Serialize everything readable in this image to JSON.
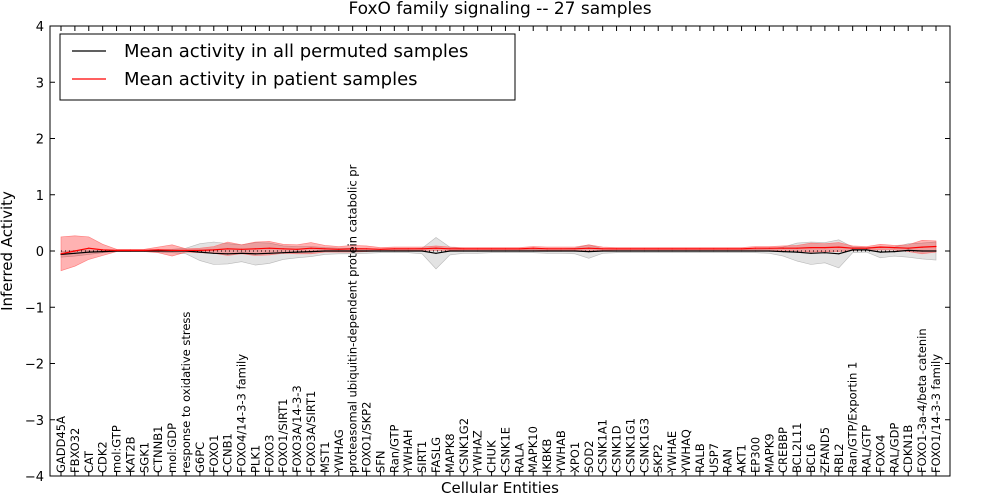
{
  "chart_data": {
    "type": "line",
    "title": "FoxO family signaling -- 27 samples",
    "xlabel": "Cellular Entities",
    "ylabel": "Inferred Activity",
    "ylim": [
      -4,
      4
    ],
    "yticks": [
      "−4",
      "−3",
      "−2",
      "−1",
      "0",
      "1",
      "2",
      "3",
      "4"
    ],
    "legend": {
      "position": "top-left",
      "entries": [
        {
          "label": "Mean activity in all permuted samples",
          "color": "#000000"
        },
        {
          "label": "Mean activity in patient samples",
          "color": "#ff0000"
        }
      ]
    },
    "categories": [
      "GADD45A",
      "FBXO32",
      "CAT",
      "CDK2",
      "mol:GTP",
      "KAT2B",
      "SGK1",
      "CTNNB1",
      "mol:GDP",
      "response to oxidative stress",
      "G6PC",
      "FOXO1",
      "CCNB1",
      "FOXO4/14-3-3 family",
      "PLK1",
      "FOXO3",
      "FOXO1/SIRT1",
      "FOXO3A/14-3-3",
      "FOXO3A/SIRT1",
      "MST1",
      "YWHAG",
      "proteasomal ubiquitin-dependent protein catabolic pr",
      "FOXO1/SKP2",
      "SFN",
      "Ran/GTP",
      "YWHAH",
      "SIRT1",
      "FASLG",
      "MAPK8",
      "CSNK1G2",
      "YWHAZ",
      "CHUK",
      "CSNK1E",
      "RALA",
      "MAPK10",
      "IKBKB",
      "YWHAB",
      "XPO1",
      "SOD2",
      "CSNK1A1",
      "CSNK1D",
      "CSNK1G1",
      "CSNK1G3",
      "SKP2",
      "YWHAE",
      "YWHAQ",
      "RALB",
      "USP7",
      "RAN",
      "AKT1",
      "EP300",
      "MAPK9",
      "CREBBP",
      "BCL2L11",
      "BCL6",
      "ZFAND5",
      "RBL2",
      "Ran/GTP/Exportin 1",
      "RAL/GTP",
      "FOXO4",
      "RAL/GDP",
      "CDKN1B",
      "FOXO1-3a-4/beta catenin",
      "FOXO1/14-3-3 family"
    ],
    "series": [
      {
        "name": "Mean activity in all permuted samples",
        "color": "#000000",
        "values": [
          -0.06,
          -0.04,
          -0.02,
          -0.01,
          0,
          0,
          0,
          0,
          0,
          0,
          -0.02,
          -0.04,
          -0.05,
          -0.04,
          -0.05,
          -0.04,
          -0.03,
          -0.02,
          -0.01,
          0,
          0,
          0,
          0,
          0,
          0,
          0,
          0,
          -0.04,
          0,
          0,
          0,
          0,
          0,
          0,
          0,
          0,
          0,
          0,
          -0.01,
          0,
          0,
          0,
          0,
          0,
          0,
          0,
          0,
          0,
          0,
          0,
          0,
          0,
          -0.01,
          -0.02,
          -0.04,
          -0.03,
          -0.05,
          0.02,
          0.02,
          -0.02,
          -0.01,
          0.01,
          0,
          0
        ],
        "band": [
          0.05,
          0.05,
          0.04,
          0.02,
          0.01,
          0.01,
          0.01,
          0.02,
          0.03,
          0.05,
          0.15,
          0.2,
          0.18,
          0.15,
          0.2,
          0.18,
          0.12,
          0.1,
          0.09,
          0.06,
          0.05,
          0.05,
          0.04,
          0.03,
          0.03,
          0.03,
          0.05,
          0.28,
          0.07,
          0.04,
          0.04,
          0.03,
          0.03,
          0.03,
          0.03,
          0.04,
          0.04,
          0.05,
          0.12,
          0.04,
          0.03,
          0.03,
          0.03,
          0.03,
          0.03,
          0.03,
          0.03,
          0.03,
          0.03,
          0.03,
          0.03,
          0.04,
          0.08,
          0.16,
          0.2,
          0.18,
          0.25,
          0.05,
          0.04,
          0.1,
          0.08,
          0.12,
          0.14,
          0.16
        ]
      },
      {
        "name": "Mean activity in patient samples",
        "color": "#ff0000",
        "values": [
          -0.05,
          0,
          0.05,
          0.02,
          0.01,
          0.01,
          0.01,
          0.02,
          0.01,
          0.01,
          0.01,
          0.02,
          0.04,
          0.03,
          0.04,
          0.05,
          0.04,
          0.03,
          0.05,
          0.04,
          0.03,
          0.04,
          0.04,
          0.03,
          0.04,
          0.04,
          0.04,
          0.05,
          0.04,
          0.04,
          0.04,
          0.04,
          0.04,
          0.04,
          0.05,
          0.04,
          0.04,
          0.04,
          0.05,
          0.04,
          0.04,
          0.04,
          0.04,
          0.04,
          0.04,
          0.04,
          0.04,
          0.04,
          0.04,
          0.04,
          0.05,
          0.05,
          0.05,
          0.05,
          0.06,
          0.06,
          0.07,
          0.05,
          0.05,
          0.07,
          0.06,
          0.05,
          0.07,
          0.08
        ],
        "band": [
          0.3,
          0.27,
          0.2,
          0.1,
          0.02,
          0.02,
          0.02,
          0.05,
          0.1,
          0.03,
          0.04,
          0.06,
          0.12,
          0.08,
          0.12,
          0.12,
          0.08,
          0.08,
          0.1,
          0.06,
          0.05,
          0.06,
          0.05,
          0.03,
          0.03,
          0.03,
          0.03,
          0.04,
          0.03,
          0.02,
          0.02,
          0.02,
          0.02,
          0.02,
          0.03,
          0.03,
          0.03,
          0.03,
          0.06,
          0.03,
          0.02,
          0.02,
          0.02,
          0.02,
          0.02,
          0.02,
          0.02,
          0.02,
          0.02,
          0.02,
          0.03,
          0.03,
          0.04,
          0.05,
          0.08,
          0.07,
          0.08,
          0.04,
          0.03,
          0.05,
          0.04,
          0.06,
          0.12,
          0.1
        ]
      }
    ]
  }
}
